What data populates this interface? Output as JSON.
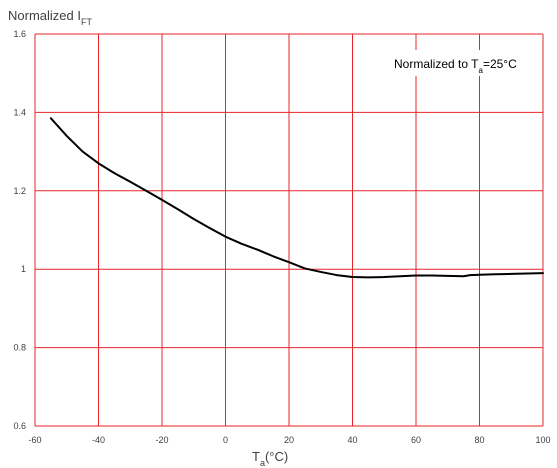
{
  "chart_data": {
    "type": "line",
    "ylabel": {
      "main": "Normalized I",
      "sub": "FT"
    },
    "xlabel": {
      "main": "T",
      "sub": "a",
      "unit": "(°C)"
    },
    "annotation": {
      "text": "Normalized to T",
      "sub": "a",
      "rest": "=25°C"
    },
    "xlim": [
      -60,
      100
    ],
    "ylim": [
      0.6,
      1.6
    ],
    "x_ticks": [
      -60,
      -40,
      -20,
      0,
      20,
      40,
      60,
      80,
      100
    ],
    "x_tick_labels": [
      "-60",
      "-40",
      "-20",
      "0",
      "20",
      "40",
      "60",
      "80",
      "100"
    ],
    "y_ticks": [
      0.6,
      0.8,
      1.0,
      1.2,
      1.4,
      1.6
    ],
    "y_tick_labels": [
      "0.6",
      "0.8",
      "1",
      "1.2",
      "1.4",
      "1.6"
    ],
    "grid": true,
    "colors": {
      "grid": "#e8262a",
      "line": "#000000",
      "text": "#404040"
    },
    "series": [
      {
        "x": [
          -55,
          -50,
          -45,
          -40,
          -35,
          -30,
          -25,
          -20,
          -15,
          -10,
          -5,
          0,
          5,
          10,
          15,
          20,
          25,
          30,
          35,
          40,
          45,
          50,
          55,
          60,
          65,
          70,
          75,
          77,
          80,
          85,
          90,
          95,
          100
        ],
        "y": [
          1.385,
          1.34,
          1.3,
          1.27,
          1.245,
          1.223,
          1.2,
          1.177,
          1.153,
          1.128,
          1.105,
          1.083,
          1.065,
          1.05,
          1.033,
          1.018,
          1.002,
          0.993,
          0.985,
          0.98,
          0.979,
          0.98,
          0.982,
          0.984,
          0.984,
          0.983,
          0.982,
          0.985,
          0.986,
          0.987,
          0.988,
          0.989,
          0.99
        ]
      }
    ]
  }
}
